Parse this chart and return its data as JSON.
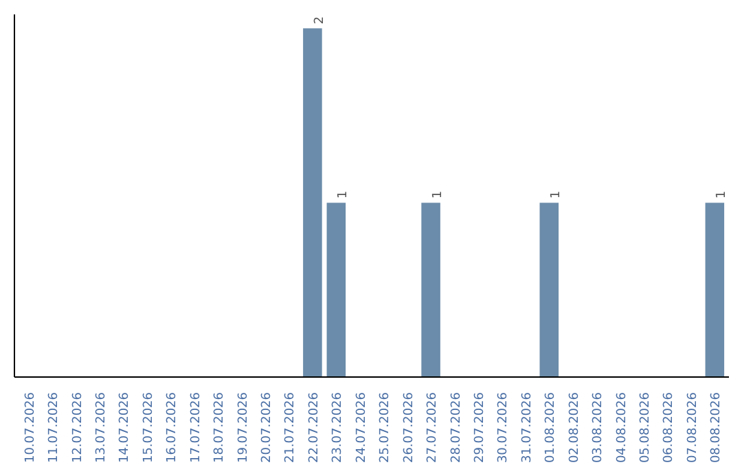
{
  "chart_data": {
    "type": "bar",
    "categories": [
      "10.07.2026",
      "11.07.2026",
      "12.07.2026",
      "13.07.2026",
      "14.07.2026",
      "15.07.2026",
      "16.07.2026",
      "17.07.2026",
      "18.07.2026",
      "19.07.2026",
      "20.07.2026",
      "21.07.2026",
      "22.07.2026",
      "23.07.2026",
      "24.07.2026",
      "25.07.2026",
      "26.07.2026",
      "27.07.2026",
      "28.07.2026",
      "29.07.2026",
      "30.07.2026",
      "31.07.2026",
      "01.08.2026",
      "02.08.2026",
      "03.08.2026",
      "04.08.2026",
      "05.08.2026",
      "06.08.2026",
      "07.08.2026",
      "08.08.2026"
    ],
    "values": [
      null,
      null,
      null,
      null,
      null,
      null,
      null,
      null,
      null,
      null,
      null,
      null,
      2,
      1,
      null,
      null,
      null,
      1,
      null,
      null,
      null,
      null,
      1,
      null,
      null,
      null,
      null,
      null,
      null,
      1
    ],
    "value_labels": [
      null,
      null,
      null,
      null,
      null,
      null,
      null,
      null,
      null,
      null,
      null,
      null,
      "2",
      "1",
      null,
      null,
      null,
      "1",
      null,
      null,
      null,
      null,
      "1",
      null,
      null,
      null,
      null,
      null,
      null,
      "1"
    ],
    "color": "#6b8caa",
    "grid": false,
    "tick_labels": "x"
  }
}
